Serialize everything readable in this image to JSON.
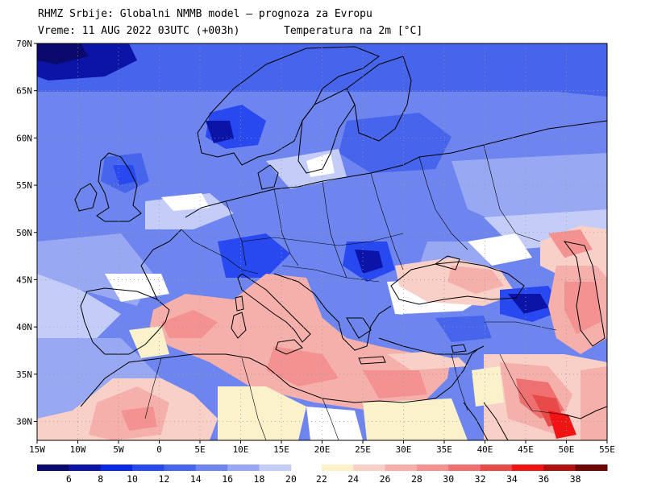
{
  "header": {
    "line1": "RHMZ Srbije: Globalni NMMB model — prognoza za Evropu",
    "line2": "Vreme: 11 AUG 2022 03UTC (+003h)",
    "line3": "Temperatura na 2m [°C]"
  },
  "map": {
    "lon_range": [
      -15,
      55
    ],
    "lat_range": [
      28,
      70
    ],
    "lat_ticks": [
      {
        "value": 70,
        "label": "70N"
      },
      {
        "value": 65,
        "label": "65N"
      },
      {
        "value": 60,
        "label": "60N"
      },
      {
        "value": 55,
        "label": "55N"
      },
      {
        "value": 50,
        "label": "50N"
      },
      {
        "value": 45,
        "label": "45N"
      },
      {
        "value": 40,
        "label": "40N"
      },
      {
        "value": 35,
        "label": "35N"
      },
      {
        "value": 30,
        "label": "30N"
      }
    ],
    "lon_ticks": [
      {
        "value": -15,
        "label": "15W"
      },
      {
        "value": -10,
        "label": "10W"
      },
      {
        "value": -5,
        "label": "5W"
      },
      {
        "value": 0,
        "label": "0"
      },
      {
        "value": 5,
        "label": "5E"
      },
      {
        "value": 10,
        "label": "10E"
      },
      {
        "value": 15,
        "label": "15E"
      },
      {
        "value": 20,
        "label": "20E"
      },
      {
        "value": 25,
        "label": "25E"
      },
      {
        "value": 30,
        "label": "30E"
      },
      {
        "value": 35,
        "label": "35E"
      },
      {
        "value": 40,
        "label": "40E"
      },
      {
        "value": 45,
        "label": "45E"
      },
      {
        "value": 50,
        "label": "50E"
      },
      {
        "value": 55,
        "label": "55E"
      }
    ],
    "gridlines": true
  },
  "colorbar": {
    "labels": [
      "6",
      "8",
      "10",
      "12",
      "14",
      "16",
      "18",
      "20",
      "22",
      "24",
      "26",
      "28",
      "30",
      "32",
      "34",
      "36",
      "38"
    ],
    "colors_cold": [
      "#0a0a6e",
      "#0c14a8",
      "#0a28e6",
      "#2848f0",
      "#4664ec",
      "#6e84ee",
      "#98a8f2",
      "#c4cdf8"
    ],
    "colors_warm": [
      "#fbf2cc",
      "#f8d0c8",
      "#f6b0ac",
      "#f39290",
      "#ee7070",
      "#e84a4a",
      "#f01414",
      "#b01010",
      "#6e0606"
    ]
  }
}
